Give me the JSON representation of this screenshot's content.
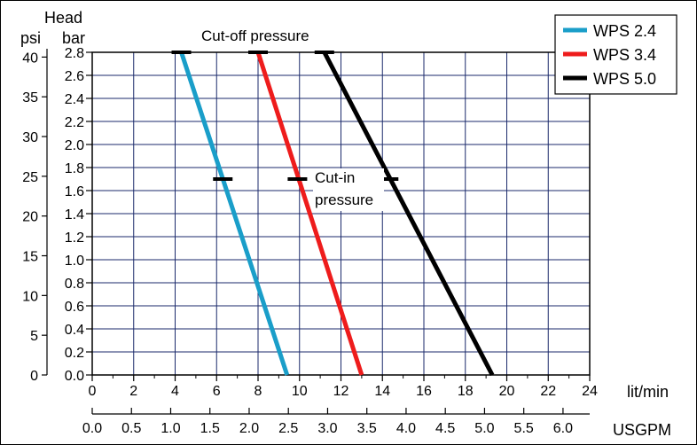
{
  "chart_data": {
    "type": "line",
    "axes": {
      "x_primary": {
        "label": "lit/min",
        "min": 0,
        "max": 24,
        "ticks": [
          0,
          2,
          4,
          6,
          8,
          10,
          12,
          14,
          16,
          18,
          20,
          22,
          24
        ],
        "tick_labels": [
          "0",
          "2",
          "4",
          "6",
          "8",
          "10",
          "12",
          "14",
          "16",
          "18",
          "20",
          "22",
          "24"
        ]
      },
      "x_secondary": {
        "label": "USGPM",
        "min": 0,
        "max": 6.34,
        "ticks": [
          0.0,
          0.5,
          1.0,
          1.5,
          2.0,
          2.5,
          3.0,
          3.5,
          4.0,
          4.5,
          5.0,
          5.5,
          6.0
        ],
        "tick_labels": [
          "0.0",
          "0.5",
          "1.0",
          "1.5",
          "2.0",
          "2.5",
          "3.0",
          "3.5",
          "4.0",
          "4.5",
          "5.0",
          "5.5",
          "6.0"
        ]
      },
      "y_header": "Head",
      "y_primary": {
        "label": "bar",
        "min": 0,
        "max": 2.8,
        "ticks": [
          0.0,
          0.2,
          0.4,
          0.6,
          0.8,
          1.0,
          1.2,
          1.4,
          1.6,
          1.8,
          2.0,
          2.2,
          2.4,
          2.6,
          2.8
        ],
        "tick_labels": [
          "0.0",
          "0.2",
          "0.4",
          "0.6",
          "0.8",
          "1.0",
          "1.2",
          "1.4",
          "1.6",
          "1.8",
          "2.0",
          "2.2",
          "2.4",
          "2.6",
          "2.8"
        ]
      },
      "y_secondary": {
        "label": "psi",
        "min": 0,
        "max": 40.6,
        "ticks": [
          0,
          5,
          10,
          15,
          20,
          25,
          30,
          35,
          40
        ],
        "tick_labels": [
          "0",
          "5",
          "10",
          "15",
          "20",
          "25",
          "30",
          "35",
          "40"
        ]
      },
      "grid": true
    },
    "series": [
      {
        "name": "WPS 2.4",
        "color": "#1a9ec9",
        "x": [
          4.3,
          9.4
        ],
        "y": [
          2.8,
          0.0
        ]
      },
      {
        "name": "WPS 3.4",
        "color": "#ee1c1c",
        "x": [
          8.0,
          13.0
        ],
        "y": [
          2.8,
          0.0
        ]
      },
      {
        "name": "WPS 5.0",
        "color": "#000000",
        "x": [
          11.2,
          19.3
        ],
        "y": [
          2.8,
          0.0
        ]
      }
    ],
    "markers": {
      "cut_off": {
        "y": 2.8,
        "x": [
          4.3,
          8.0,
          11.2
        ]
      },
      "cut_in": {
        "y": 1.7,
        "x": [
          6.3,
          9.9,
          14.3
        ]
      }
    },
    "annotations": [
      {
        "text": "Cut-off pressure"
      },
      {
        "lines": [
          "Cut-in",
          "pressure"
        ]
      }
    ],
    "legend": {
      "position": "top-right"
    }
  }
}
